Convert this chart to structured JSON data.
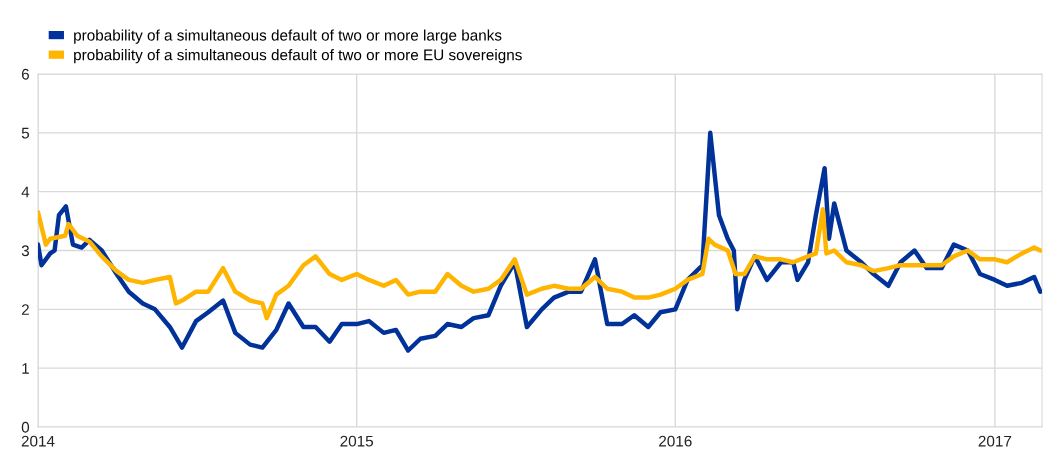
{
  "chart_data": {
    "type": "line",
    "xlim": [
      "2014-01-01",
      "2017-02-24"
    ],
    "xticks": [
      {
        "value": "2014-01-01",
        "label": "2014"
      },
      {
        "value": "2015-01-01",
        "label": "2015"
      },
      {
        "value": "2016-01-01",
        "label": "2016"
      },
      {
        "value": "2017-01-01",
        "label": "2017"
      }
    ],
    "ylim": [
      0,
      6
    ],
    "yticks": [
      0,
      1,
      2,
      3,
      4,
      5,
      6
    ],
    "grid": true,
    "legend": "top left",
    "line_style": "solid",
    "marker": "none",
    "series": [
      {
        "name": "probability of a simultaneous default of two or more large banks",
        "color": "#003299",
        "x": [
          "2014-01-01",
          "2014-01-05",
          "2014-01-15",
          "2014-01-20",
          "2014-01-25",
          "2014-02-02",
          "2014-02-10",
          "2014-02-20",
          "2014-03-01",
          "2014-03-15",
          "2014-04-01",
          "2014-04-15",
          "2014-05-01",
          "2014-05-15",
          "2014-06-01",
          "2014-06-15",
          "2014-07-01",
          "2014-07-15",
          "2014-08-01",
          "2014-08-15",
          "2014-09-01",
          "2014-09-15",
          "2014-10-01",
          "2014-10-15",
          "2014-11-01",
          "2014-11-15",
          "2014-12-01",
          "2014-12-15",
          "2015-01-01",
          "2015-01-15",
          "2015-02-01",
          "2015-02-15",
          "2015-03-01",
          "2015-03-15",
          "2015-04-01",
          "2015-04-15",
          "2015-05-01",
          "2015-05-15",
          "2015-06-01",
          "2015-06-15",
          "2015-07-01",
          "2015-07-15",
          "2015-08-01",
          "2015-08-15",
          "2015-09-01",
          "2015-09-15",
          "2015-10-01",
          "2015-10-15",
          "2015-11-01",
          "2015-11-15",
          "2015-12-01",
          "2015-12-15",
          "2016-01-01",
          "2016-01-15",
          "2016-02-01",
          "2016-02-08",
          "2016-02-10",
          "2016-02-20",
          "2016-03-01",
          "2016-03-08",
          "2016-03-12",
          "2016-03-20",
          "2016-04-01",
          "2016-04-15",
          "2016-05-01",
          "2016-05-15",
          "2016-05-20",
          "2016-06-01",
          "2016-06-10",
          "2016-06-20",
          "2016-06-25",
          "2016-07-01",
          "2016-07-15",
          "2016-08-01",
          "2016-08-15",
          "2016-09-01",
          "2016-09-15",
          "2016-10-01",
          "2016-10-15",
          "2016-11-01",
          "2016-11-15",
          "2016-12-01",
          "2016-12-15",
          "2017-01-01",
          "2017-01-15",
          "2017-02-01",
          "2017-02-15",
          "2017-02-22"
        ],
        "values": [
          3.1,
          2.75,
          2.95,
          3.0,
          3.6,
          3.75,
          3.1,
          3.05,
          3.18,
          3.0,
          2.6,
          2.3,
          2.1,
          2.0,
          1.7,
          1.35,
          1.8,
          1.95,
          2.15,
          1.6,
          1.4,
          1.35,
          1.65,
          2.1,
          1.7,
          1.7,
          1.45,
          1.75,
          1.75,
          1.8,
          1.6,
          1.65,
          1.3,
          1.5,
          1.55,
          1.75,
          1.7,
          1.85,
          1.9,
          2.4,
          2.8,
          1.7,
          2.0,
          2.2,
          2.3,
          2.3,
          2.85,
          1.75,
          1.75,
          1.9,
          1.7,
          1.95,
          2.0,
          2.5,
          2.75,
          4.5,
          5.0,
          3.6,
          3.2,
          3.0,
          2.0,
          2.5,
          2.9,
          2.5,
          2.8,
          2.8,
          2.5,
          2.8,
          3.6,
          4.4,
          3.2,
          3.8,
          3.0,
          2.8,
          2.6,
          2.4,
          2.8,
          3.0,
          2.7,
          2.7,
          3.1,
          3.0,
          2.6,
          2.5,
          2.4,
          2.45,
          2.55,
          2.3
        ]
      },
      {
        "name": "probability of a simultaneous default of two or more EU sovereigns",
        "color": "#ffb400",
        "x": [
          "2014-01-01",
          "2014-01-10",
          "2014-01-15",
          "2014-02-01",
          "2014-02-05",
          "2014-02-15",
          "2014-03-01",
          "2014-03-15",
          "2014-04-01",
          "2014-04-15",
          "2014-05-01",
          "2014-05-15",
          "2014-06-01",
          "2014-06-08",
          "2014-06-15",
          "2014-07-01",
          "2014-07-15",
          "2014-08-01",
          "2014-08-15",
          "2014-09-01",
          "2014-09-15",
          "2014-09-20",
          "2014-10-01",
          "2014-10-15",
          "2014-11-01",
          "2014-11-15",
          "2014-12-01",
          "2014-12-15",
          "2015-01-01",
          "2015-01-15",
          "2015-02-01",
          "2015-02-15",
          "2015-03-01",
          "2015-03-15",
          "2015-04-01",
          "2015-04-15",
          "2015-05-01",
          "2015-05-15",
          "2015-06-01",
          "2015-06-15",
          "2015-07-01",
          "2015-07-15",
          "2015-08-01",
          "2015-08-15",
          "2015-09-01",
          "2015-09-15",
          "2015-10-01",
          "2015-10-15",
          "2015-11-01",
          "2015-11-15",
          "2015-12-01",
          "2015-12-15",
          "2016-01-01",
          "2016-01-15",
          "2016-02-01",
          "2016-02-08",
          "2016-02-15",
          "2016-03-01",
          "2016-03-10",
          "2016-03-20",
          "2016-04-01",
          "2016-04-15",
          "2016-05-01",
          "2016-05-15",
          "2016-06-01",
          "2016-06-10",
          "2016-06-18",
          "2016-06-22",
          "2016-07-01",
          "2016-07-15",
          "2016-08-01",
          "2016-08-15",
          "2016-09-01",
          "2016-09-15",
          "2016-10-01",
          "2016-10-15",
          "2016-11-01",
          "2016-11-15",
          "2016-12-01",
          "2016-12-15",
          "2017-01-01",
          "2017-01-15",
          "2017-02-01",
          "2017-02-15",
          "2017-02-22"
        ],
        "values": [
          3.65,
          3.1,
          3.2,
          3.25,
          3.45,
          3.25,
          3.15,
          2.9,
          2.65,
          2.5,
          2.45,
          2.5,
          2.55,
          2.1,
          2.15,
          2.3,
          2.3,
          2.7,
          2.3,
          2.15,
          2.1,
          1.85,
          2.25,
          2.4,
          2.75,
          2.9,
          2.6,
          2.5,
          2.6,
          2.5,
          2.4,
          2.5,
          2.25,
          2.3,
          2.3,
          2.6,
          2.4,
          2.3,
          2.35,
          2.5,
          2.85,
          2.25,
          2.35,
          2.4,
          2.35,
          2.35,
          2.55,
          2.35,
          2.3,
          2.2,
          2.2,
          2.25,
          2.35,
          2.5,
          2.6,
          3.2,
          3.1,
          3.0,
          2.6,
          2.6,
          2.9,
          2.85,
          2.85,
          2.8,
          2.9,
          2.95,
          3.7,
          2.95,
          3.0,
          2.8,
          2.75,
          2.65,
          2.7,
          2.75,
          2.75,
          2.75,
          2.75,
          2.9,
          3.0,
          2.85,
          2.85,
          2.8,
          2.95,
          3.05,
          3.0
        ]
      }
    ]
  }
}
